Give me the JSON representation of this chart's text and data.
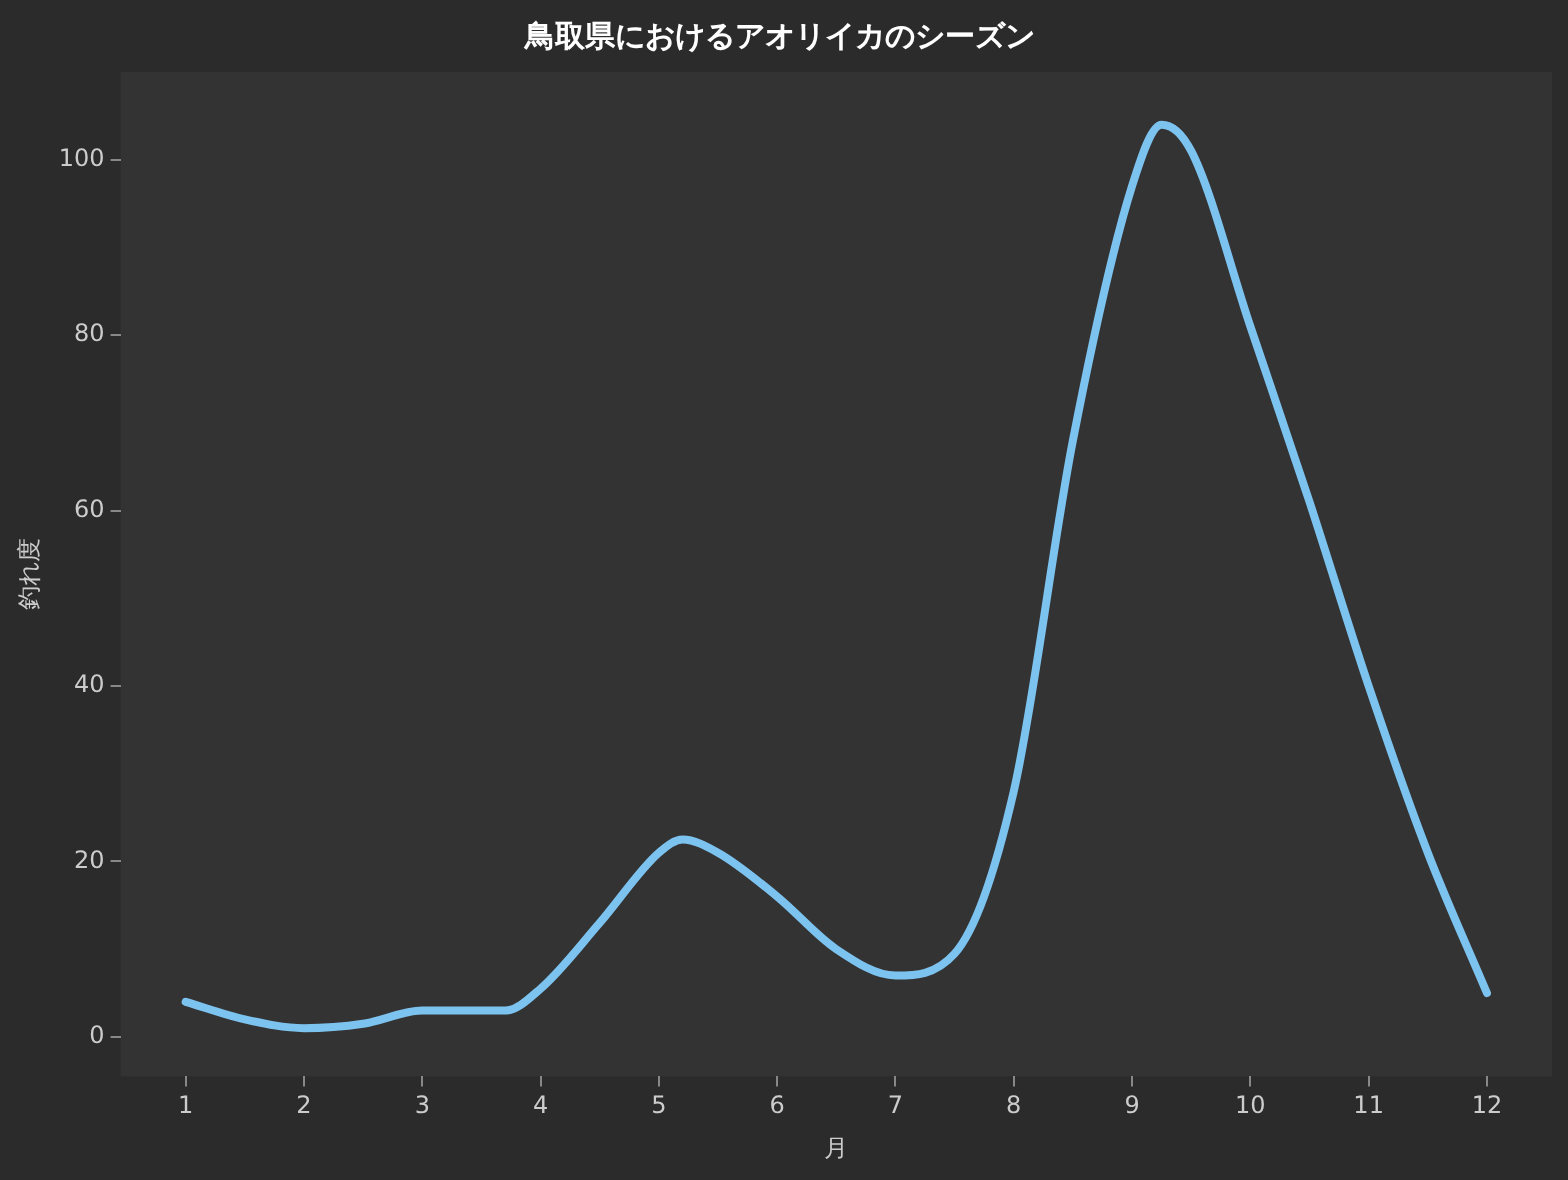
{
  "chart_data": {
    "type": "line",
    "title": "鳥取県におけるアオリイカのシーズン",
    "xlabel": "月",
    "ylabel": "釣れ度",
    "series": [
      {
        "color": "#7dc3f0",
        "x": [
          1,
          1.5,
          2,
          2.5,
          3,
          3.4,
          3.7,
          4,
          4.5,
          5,
          5.2,
          5.5,
          6,
          6.5,
          7,
          7.5,
          8,
          8.5,
          9,
          9.25,
          9.5,
          10,
          10.5,
          11,
          11.5,
          12
        ],
        "values": [
          4,
          2,
          1,
          1.5,
          3,
          3,
          3,
          5.5,
          13,
          21,
          22.5,
          21,
          16,
          10,
          7,
          9.5,
          28,
          68,
          97,
          104,
          101,
          81,
          61,
          40,
          21,
          5
        ]
      }
    ],
    "xlim": [
      0.45,
      12.55
    ],
    "xticks": [
      1,
      2,
      3,
      4,
      5,
      6,
      7,
      8,
      9,
      10,
      11,
      12
    ],
    "ylim": [
      -4.5,
      110
    ],
    "yticks": [
      0,
      20,
      40,
      60,
      80,
      100
    ],
    "grid": false,
    "legend": false,
    "marker": "none",
    "line_style": "solid"
  }
}
